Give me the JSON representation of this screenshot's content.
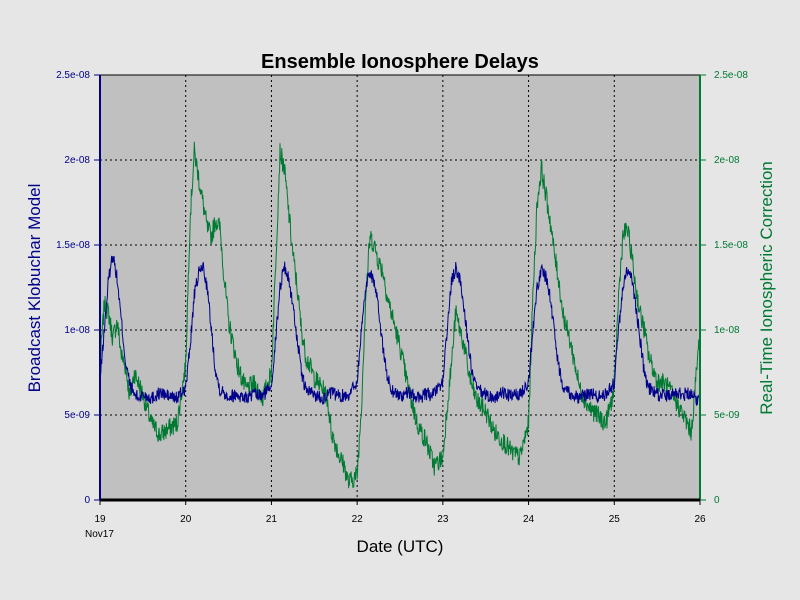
{
  "chart_data": {
    "type": "line",
    "title": "Ensemble Ionosphere Delays",
    "xlabel": "Date (UTC)",
    "ylabel_left": "Broadcast Klobuchar Model",
    "ylabel_right": "Real-Time Ionospheric Correction",
    "x_tick_labels": [
      "19",
      "20",
      "21",
      "22",
      "23",
      "24",
      "25",
      "26"
    ],
    "x_tick_sublabel": "Nov17",
    "x_range_days": [
      19,
      26
    ],
    "ylim_left": [
      0,
      2.5e-08
    ],
    "ylim_right": [
      0,
      2.5e-08
    ],
    "y_tick_labels_left": [
      "0",
      "5e-09",
      "1e-08",
      "1.5e-08",
      "2e-08",
      "2.5e-08"
    ],
    "y_tick_labels_right": [
      "0",
      "5e-09",
      "1e-08",
      "1.5e-08",
      "2e-08",
      "2.5e-08"
    ],
    "grid": true,
    "colors": {
      "page_bg": "#e6e6e6",
      "plot_bg": "#c0c0c0",
      "left_axis": "#00008b",
      "right_axis": "#007a33",
      "klobuchar_series": "#00008b",
      "realtime_series": "#007a33"
    },
    "series": [
      {
        "key": "klobuchar",
        "axis": "left",
        "x": [
          19.0,
          19.05,
          19.1,
          19.15,
          19.2,
          19.25,
          19.3,
          19.35,
          19.4,
          19.45,
          19.5,
          19.6,
          19.7,
          19.8,
          19.9,
          20.0,
          20.05,
          20.1,
          20.15,
          20.2,
          20.25,
          20.3,
          20.35,
          20.4,
          20.5,
          20.6,
          20.7,
          20.8,
          20.9,
          21.0,
          21.05,
          21.1,
          21.15,
          21.2,
          21.25,
          21.3,
          21.35,
          21.4,
          21.5,
          21.6,
          21.7,
          21.8,
          21.9,
          22.0,
          22.05,
          22.1,
          22.15,
          22.2,
          22.25,
          22.3,
          22.35,
          22.4,
          22.5,
          22.6,
          22.7,
          22.8,
          22.9,
          23.0,
          23.05,
          23.1,
          23.15,
          23.2,
          23.25,
          23.3,
          23.35,
          23.4,
          23.5,
          23.6,
          23.7,
          23.8,
          23.9,
          24.0,
          24.05,
          24.1,
          24.15,
          24.2,
          24.25,
          24.3,
          24.35,
          24.4,
          24.5,
          24.6,
          24.7,
          24.8,
          24.9,
          25.0,
          25.05,
          25.1,
          25.15,
          25.2,
          25.25,
          25.3,
          25.35,
          25.4,
          25.5,
          25.6,
          25.7,
          25.8,
          25.9,
          26.0
        ],
        "y": [
          7e-09,
          1e-08,
          1.3e-08,
          1.45e-08,
          1.3e-08,
          1.05e-08,
          8e-09,
          6.8e-09,
          6.2e-09,
          6e-09,
          6.2e-09,
          6e-09,
          6.3e-09,
          6.1e-09,
          6e-09,
          6.6e-09,
          9e-09,
          1.2e-08,
          1.33e-08,
          1.38e-08,
          1.25e-08,
          1e-08,
          7.5e-09,
          6.5e-09,
          6.1e-09,
          6.2e-09,
          6e-09,
          6.2e-09,
          6.1e-09,
          6.8e-09,
          9.5e-09,
          1.25e-08,
          1.38e-08,
          1.3e-08,
          1.15e-08,
          9.5e-09,
          7.5e-09,
          6.5e-09,
          6.2e-09,
          6e-09,
          6.3e-09,
          6.1e-09,
          6.2e-09,
          7e-09,
          1e-08,
          1.25e-08,
          1.35e-08,
          1.28e-08,
          1.12e-08,
          9e-09,
          7.3e-09,
          6.5e-09,
          6.1e-09,
          6.3e-09,
          6e-09,
          6.2e-09,
          6.2e-09,
          7e-09,
          1e-08,
          1.28e-08,
          1.36e-08,
          1.3e-08,
          1.12e-08,
          9e-09,
          7.2e-09,
          6.5e-09,
          6.2e-09,
          6e-09,
          6.3e-09,
          6.1e-09,
          6.2e-09,
          7e-09,
          1e-08,
          1.25e-08,
          1.35e-08,
          1.32e-08,
          1.2e-08,
          1e-08,
          7.8e-09,
          6.8e-09,
          6.2e-09,
          6e-09,
          6.3e-09,
          6.1e-09,
          6.2e-09,
          6.9e-09,
          1e-08,
          1.25e-08,
          1.36e-08,
          1.3e-08,
          1.15e-08,
          9.5e-09,
          7.5e-09,
          6.6e-09,
          6.2e-09,
          6.1e-09,
          6.4e-09,
          6.2e-09,
          6.3e-09,
          5.8e-09
        ]
      },
      {
        "key": "realtime",
        "axis": "right",
        "x": [
          19.0,
          19.05,
          19.1,
          19.15,
          19.2,
          19.25,
          19.3,
          19.35,
          19.4,
          19.5,
          19.6,
          19.7,
          19.8,
          19.9,
          20.0,
          20.05,
          20.1,
          20.15,
          20.2,
          20.25,
          20.3,
          20.35,
          20.4,
          20.45,
          20.5,
          20.6,
          20.7,
          20.8,
          20.9,
          21.0,
          21.05,
          21.1,
          21.15,
          21.2,
          21.25,
          21.3,
          21.35,
          21.4,
          21.5,
          21.6,
          21.65,
          21.7,
          21.8,
          21.85,
          21.9,
          22.0,
          22.05,
          22.1,
          22.15,
          22.2,
          22.25,
          22.3,
          22.35,
          22.4,
          22.5,
          22.6,
          22.7,
          22.8,
          22.9,
          23.0,
          23.05,
          23.1,
          23.15,
          23.2,
          23.25,
          23.3,
          23.35,
          23.4,
          23.5,
          23.6,
          23.7,
          23.8,
          23.9,
          24.0,
          24.05,
          24.1,
          24.15,
          24.2,
          24.25,
          24.3,
          24.35,
          24.4,
          24.5,
          24.6,
          24.7,
          24.8,
          24.9,
          25.0,
          25.05,
          25.1,
          25.15,
          25.2,
          25.25,
          25.3,
          25.35,
          25.4,
          25.5,
          25.6,
          25.7,
          25.8,
          25.9,
          26.0
        ],
        "y": [
          8e-09,
          1.15e-08,
          1.1e-08,
          9.5e-09,
          1.05e-08,
          8.5e-09,
          7.8e-09,
          6e-09,
          7.5e-09,
          6.2e-09,
          4.5e-09,
          3.8e-09,
          4.2e-09,
          4.5e-09,
          8e-09,
          1.65e-08,
          2.05e-08,
          1.9e-08,
          1.75e-08,
          1.6e-08,
          1.55e-08,
          1.65e-08,
          1.6e-08,
          1.3e-08,
          1.05e-08,
          8e-09,
          6.5e-09,
          6.8e-09,
          6e-09,
          7.5e-09,
          1.4e-08,
          2.05e-08,
          1.95e-08,
          1.7e-08,
          1.45e-08,
          1.25e-08,
          1e-08,
          8.5e-09,
          7.2e-09,
          6.5e-09,
          6e-09,
          4e-09,
          2.5e-09,
          2e-09,
          1e-09,
          1.5e-09,
          5.5e-09,
          1.2e-08,
          1.55e-08,
          1.5e-08,
          1.4e-08,
          1.35e-08,
          1.2e-08,
          1.1e-08,
          9e-09,
          6.5e-09,
          4.5e-09,
          3.5e-09,
          2e-09,
          2.5e-09,
          5.5e-09,
          8e-09,
          1.1e-08,
          1e-08,
          9e-09,
          7.5e-09,
          6.5e-09,
          5.8e-09,
          5.2e-09,
          4e-09,
          3.5e-09,
          2.8e-09,
          2.5e-09,
          4.5e-09,
          1.2e-08,
          1.75e-08,
          1.95e-08,
          1.8e-08,
          1.65e-08,
          1.45e-08,
          1.3e-08,
          1.1e-08,
          9e-09,
          6.5e-09,
          5.5e-09,
          5e-09,
          4.5e-09,
          6.5e-09,
          1.2e-08,
          1.55e-08,
          1.6e-08,
          1.45e-08,
          1.25e-08,
          1.1e-08,
          1e-08,
          8.5e-09,
          7e-09,
          6.8e-09,
          6e-09,
          5e-09,
          4e-09,
          1e-08
        ]
      }
    ]
  }
}
